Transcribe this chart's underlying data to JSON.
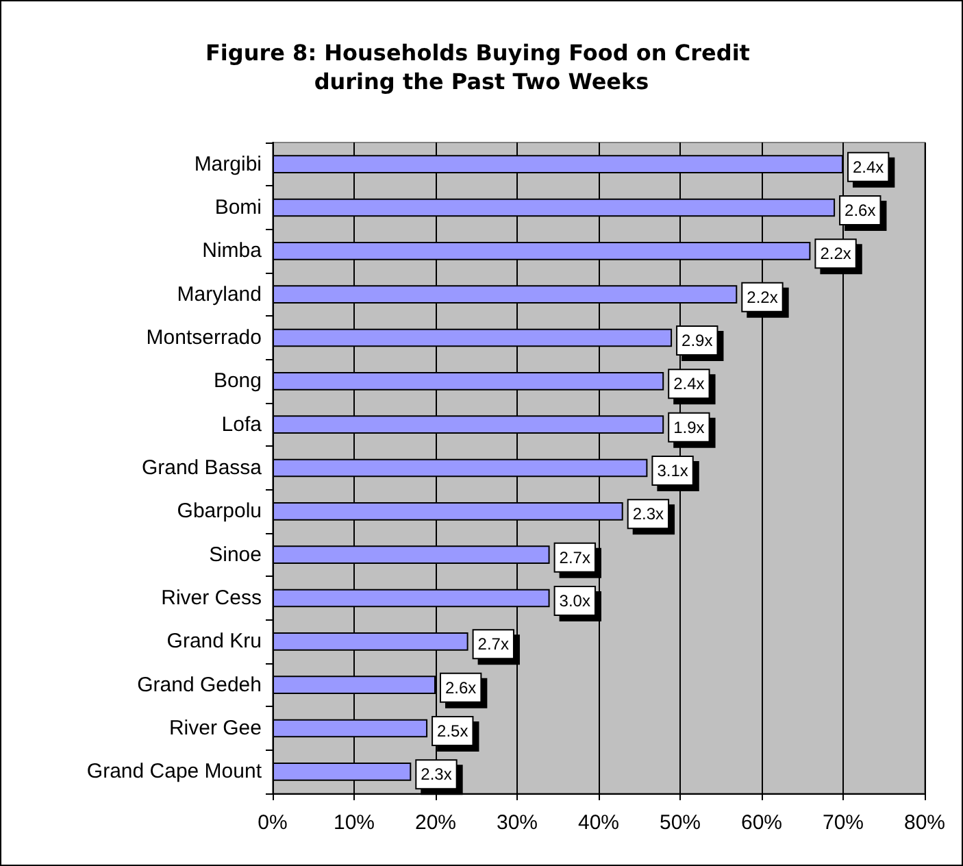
{
  "chart_data": {
    "type": "bar",
    "orientation": "horizontal",
    "title": "Figure 8: Households Buying Food on Credit during the Past Two Weeks",
    "categories": [
      "Margibi",
      "Bomi",
      "Nimba",
      "Maryland",
      "Montserrado",
      "Bong",
      "Lofa",
      "Grand Bassa",
      "Gbarpolu",
      "Sinoe",
      "River Cess",
      "Grand Kru",
      "Grand Gedeh",
      "River Gee",
      "Grand Cape Mount"
    ],
    "values": [
      70,
      69,
      66,
      57,
      49,
      48,
      48,
      46,
      43,
      34,
      34,
      24,
      20,
      19,
      17
    ],
    "annotations": [
      {
        "text": "2.4x",
        "x": 70,
        "y": "Margibi"
      },
      {
        "text": "2.6x",
        "x": 69,
        "y": "Bomi"
      },
      {
        "text": "2.2x",
        "x": 66,
        "y": "Nimba"
      },
      {
        "text": "2.2x",
        "x": 57,
        "y": "Maryland"
      },
      {
        "text": "2.9x",
        "x": 49,
        "y": "Montserrado"
      },
      {
        "text": "2.4x",
        "x": 48,
        "y": "Bong"
      },
      {
        "text": "1.9x",
        "x": 48,
        "y": "Lofa"
      },
      {
        "text": "3.1x",
        "x": 46,
        "y": "Grand Bassa"
      },
      {
        "text": "2.3x",
        "x": 43,
        "y": "Gbarpolu"
      },
      {
        "text": "2.7x",
        "x": 34,
        "y": "Sinoe"
      },
      {
        "text": "3.0x",
        "x": 34,
        "y": "River Cess"
      },
      {
        "text": "2.7x",
        "x": 24,
        "y": "Grand Kru"
      },
      {
        "text": "2.6x",
        "x": 20,
        "y": "Grand Gedeh"
      },
      {
        "text": "2.5x",
        "x": 19,
        "y": "River Gee"
      },
      {
        "text": "2.3x",
        "x": 17,
        "y": "Grand Cape Mount"
      }
    ],
    "color": "#9999ff",
    "xlim": [
      0,
      80
    ],
    "xticks": [
      {
        "value": 0,
        "label": "0%"
      },
      {
        "value": 10,
        "label": "10%"
      },
      {
        "value": 20,
        "label": "20%"
      },
      {
        "value": 30,
        "label": "30%"
      },
      {
        "value": 40,
        "label": "40%"
      },
      {
        "value": 50,
        "label": "50%"
      },
      {
        "value": 60,
        "label": "60%"
      },
      {
        "value": 70,
        "label": "70%"
      },
      {
        "value": 80,
        "label": "80%"
      }
    ],
    "grid": "x"
  }
}
